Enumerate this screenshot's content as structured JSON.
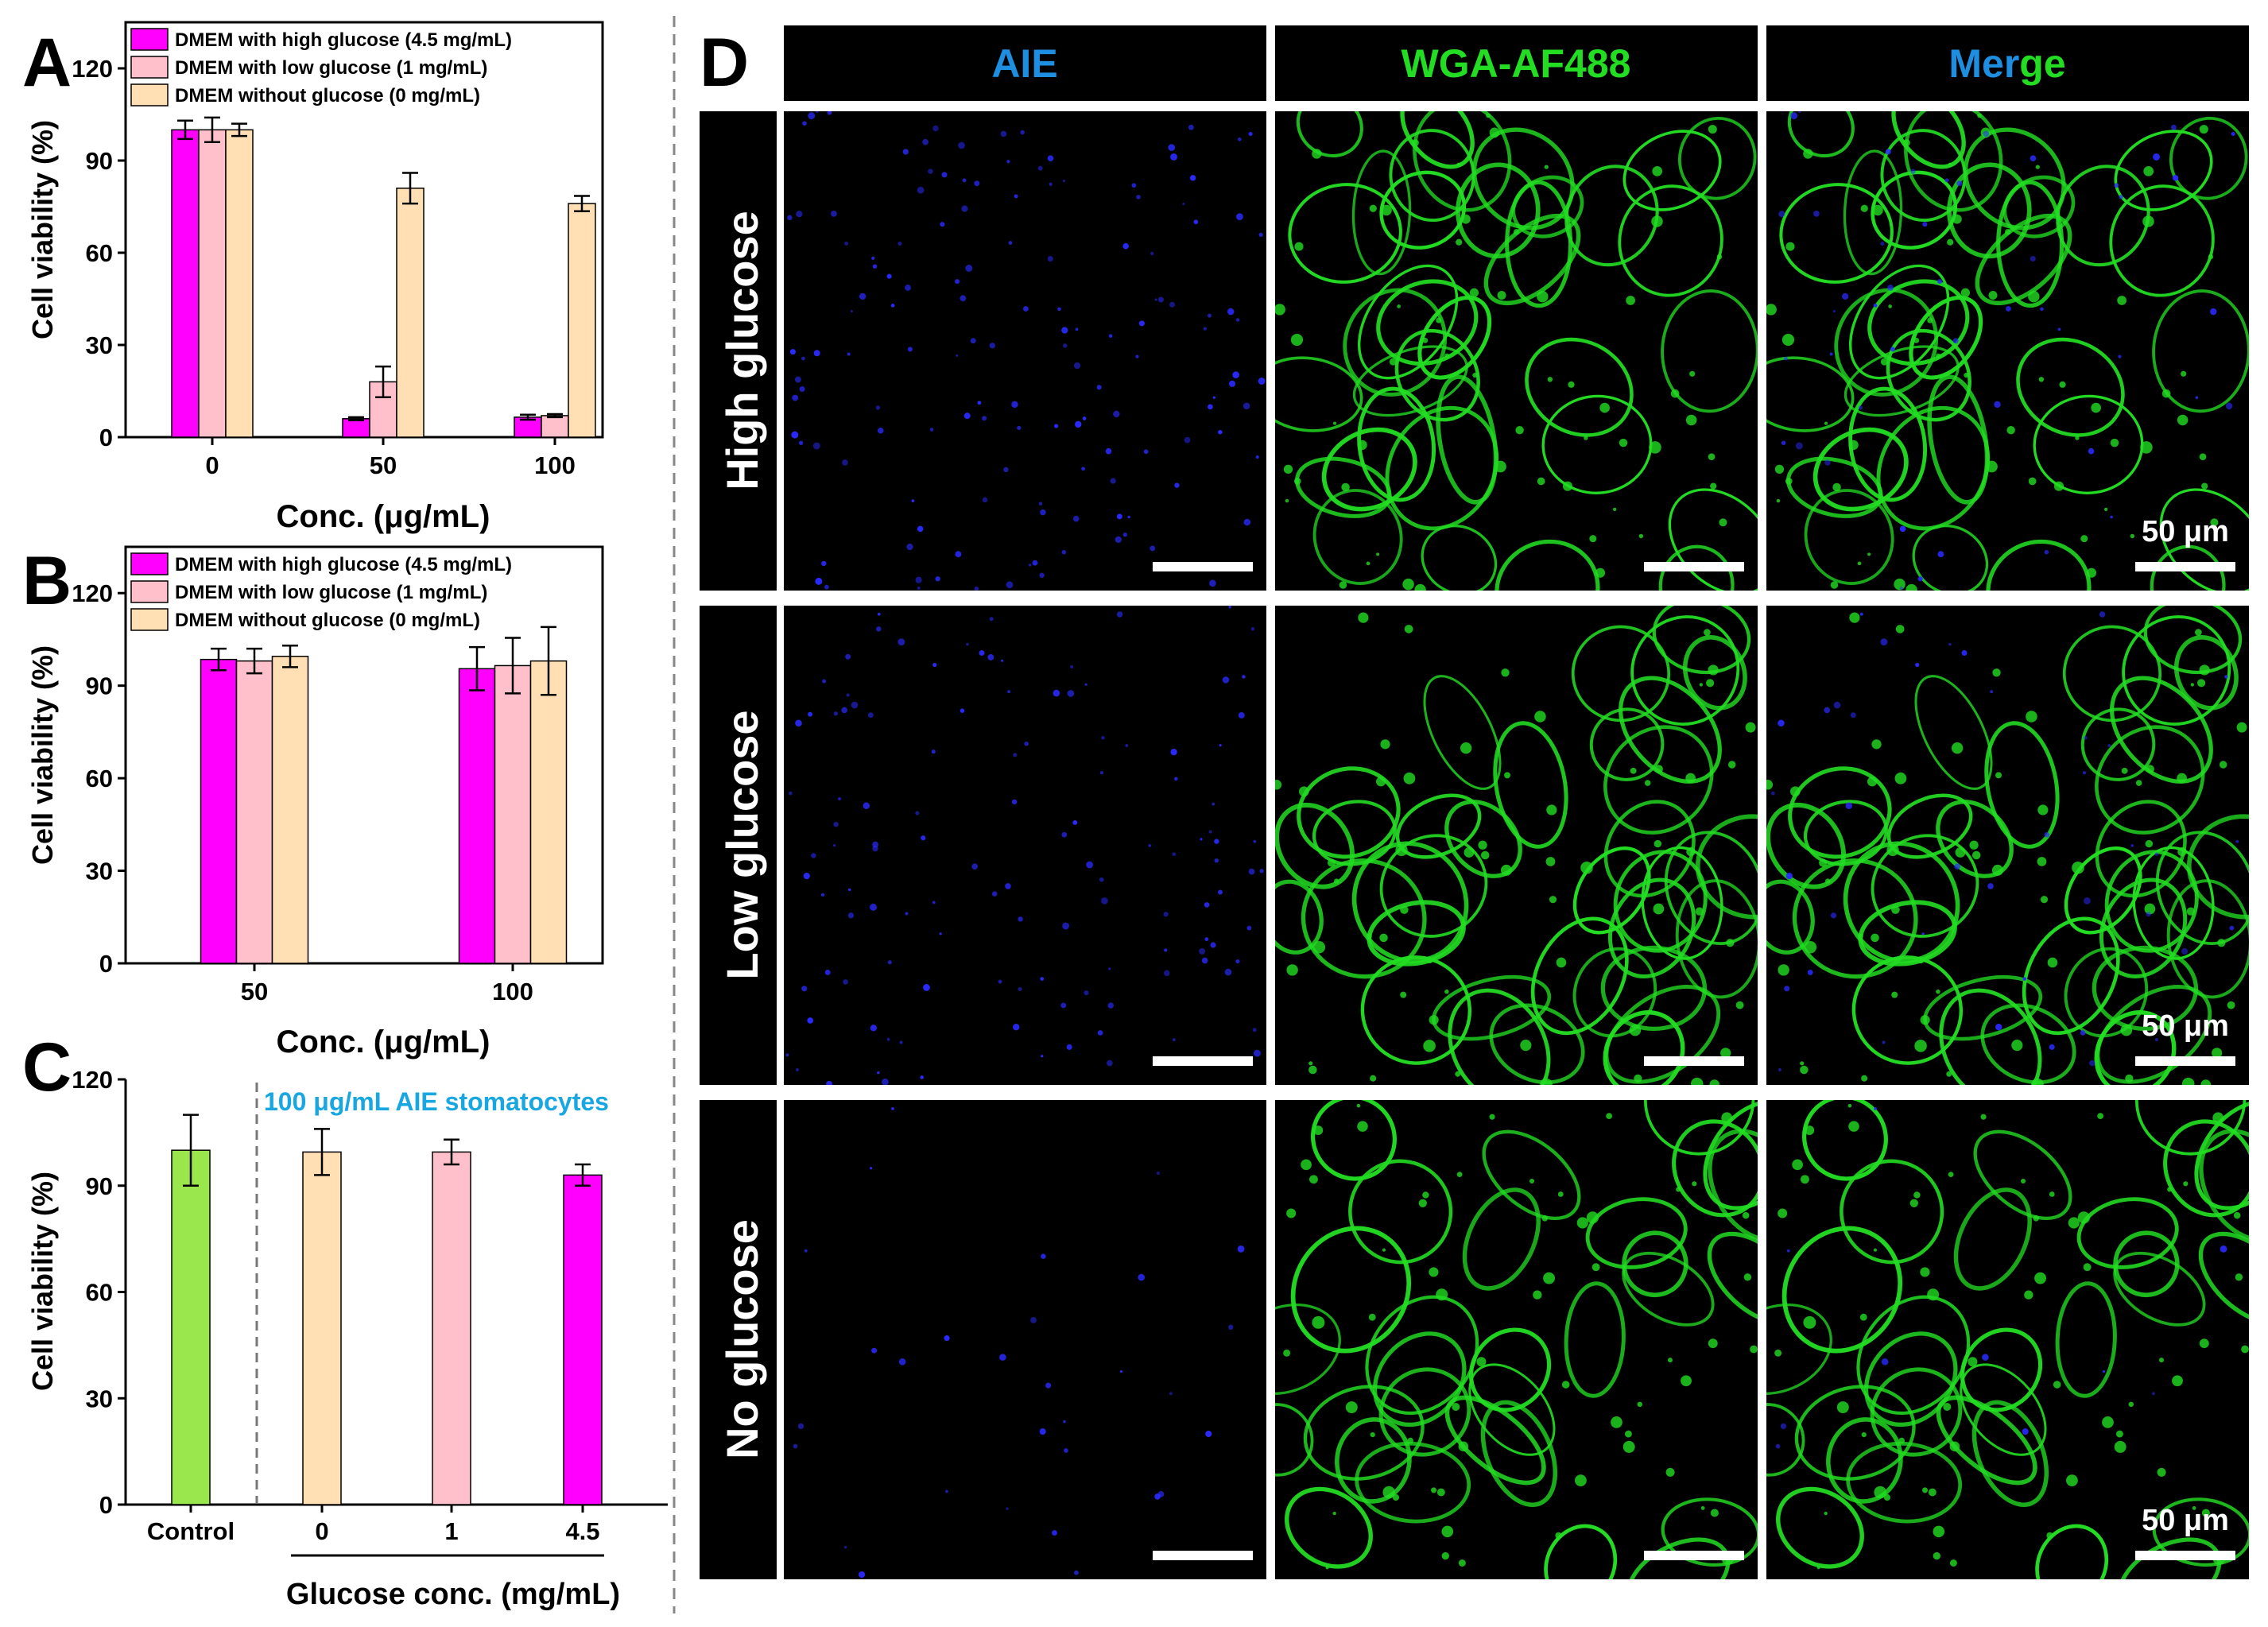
{
  "colors": {
    "high": "#ff00ff",
    "low": "#ffc0cb",
    "none": "#ffdfb3",
    "control": "#99e64d",
    "aie": "#1e8ee0",
    "wga": "#22dd22",
    "merge_blue": "#1e8ee0",
    "merge_green": "#22dd22"
  },
  "chart_data": [
    {
      "panel": "A",
      "type": "bar",
      "ylabel": "Cell viability (%)",
      "xlabel": "Conc. (μg/mL)",
      "ylim": [
        0,
        135
      ],
      "yticks": [
        0,
        30,
        60,
        90,
        120
      ],
      "categories": [
        "0",
        "50",
        "100"
      ],
      "legend_position": "top-left",
      "series": [
        {
          "name": "DMEM with high glucose (4.5 mg/mL)",
          "color_key": "high",
          "values": [
            100,
            6,
            6.5
          ],
          "errors": [
            3,
            0.5,
            0.8
          ]
        },
        {
          "name": "DMEM with low glucose (1 mg/mL)",
          "color_key": "low",
          "values": [
            100,
            18,
            7
          ],
          "errors": [
            4,
            5,
            0.5
          ]
        },
        {
          "name": "DMEM without glucose (0 mg/mL)",
          "color_key": "none",
          "values": [
            100,
            81,
            76
          ],
          "errors": [
            2,
            5,
            2.5
          ]
        }
      ]
    },
    {
      "panel": "B",
      "type": "bar",
      "ylabel": "Cell viability (%)",
      "xlabel": "Conc. (μg/mL)",
      "ylim": [
        0,
        135
      ],
      "yticks": [
        0,
        30,
        60,
        90,
        120
      ],
      "categories": [
        "50",
        "100"
      ],
      "legend_position": "top-left",
      "series": [
        {
          "name": "DMEM with high glucose (4.5 mg/mL)",
          "color_key": "high",
          "values": [
            98.5,
            95.5
          ],
          "errors": [
            3.5,
            7
          ]
        },
        {
          "name": "DMEM with low glucose (1 mg/mL)",
          "color_key": "low",
          "values": [
            98,
            96.5
          ],
          "errors": [
            4,
            9
          ]
        },
        {
          "name": "DMEM without glucose (0 mg/mL)",
          "color_key": "none",
          "values": [
            99.5,
            98
          ],
          "errors": [
            3.5,
            11
          ]
        }
      ]
    },
    {
      "panel": "C",
      "type": "bar",
      "ylabel": "Cell viability (%)",
      "xlabel": "Glucose conc. (mg/mL)",
      "ylim": [
        0,
        120
      ],
      "yticks": [
        0,
        30,
        60,
        90,
        120
      ],
      "categories": [
        "Control",
        "0",
        "1",
        "4.5"
      ],
      "values": [
        100,
        99.5,
        99.5,
        93
      ],
      "errors": [
        10,
        6.5,
        3.5,
        3
      ],
      "color_keys": [
        "control",
        "none",
        "low",
        "high"
      ],
      "annotation": "100 μg/mL AIE stomatocytes"
    }
  ],
  "panels": {
    "A": "A",
    "B": "B",
    "C": "C",
    "D": "D"
  },
  "micrographs": {
    "columns": [
      "AIE",
      "WGA-AF488",
      "Merge"
    ],
    "merge_split": [
      "Mer",
      "ge"
    ],
    "rows": [
      "High glucose",
      "Low glucose",
      "No glucose"
    ],
    "scale_bar": "50 μm"
  }
}
